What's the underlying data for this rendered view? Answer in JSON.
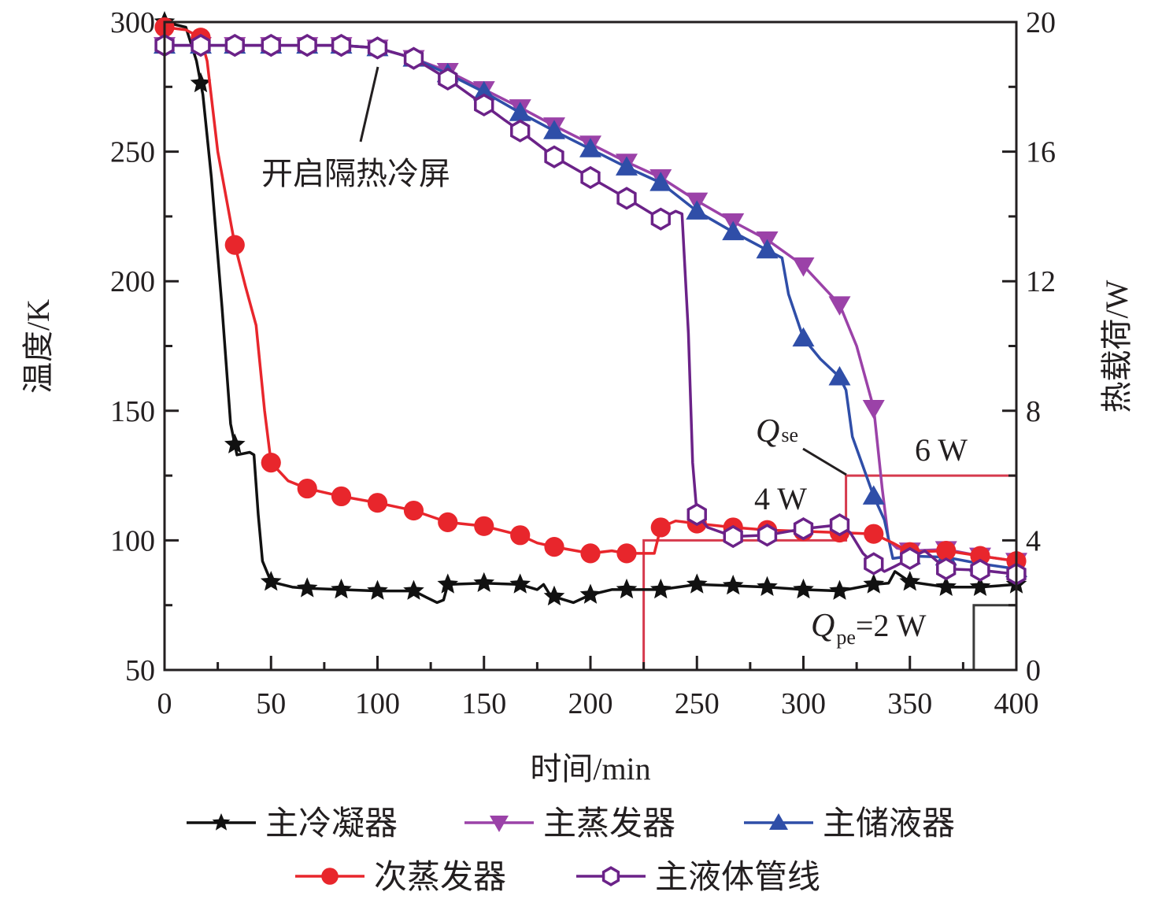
{
  "chart_data": {
    "type": "line",
    "xlabel": "时间/min",
    "ylabel": "温度/K",
    "ylabel_right": "热载荷/W",
    "xlim": [
      0,
      400
    ],
    "ylim": [
      50,
      300
    ],
    "ylim_right": [
      0,
      20
    ],
    "x_ticks": [
      "0",
      "50",
      "100",
      "150",
      "200",
      "250",
      "300",
      "350",
      "400"
    ],
    "y_ticks": [
      "300",
      "250",
      "200",
      "150",
      "100",
      "50"
    ],
    "y_ticks_right": [
      "20",
      "16",
      "12",
      "8",
      "4",
      "0"
    ],
    "grid": false,
    "legend_position": "bottom",
    "series": [
      {
        "name": "主冷凝器",
        "color": "#111111",
        "marker": "star",
        "points": [
          [
            0,
            300
          ],
          [
            10,
            298
          ],
          [
            15,
            285
          ],
          [
            18,
            272
          ],
          [
            22,
            240
          ],
          [
            27,
            190
          ],
          [
            31,
            145
          ],
          [
            34,
            133
          ],
          [
            40,
            134
          ],
          [
            42,
            133
          ],
          [
            44,
            110
          ],
          [
            46,
            92
          ],
          [
            50,
            84
          ],
          [
            60,
            82
          ],
          [
            67,
            81.5
          ],
          [
            83,
            81
          ],
          [
            100,
            80.5
          ],
          [
            117,
            80.5
          ],
          [
            123,
            78
          ],
          [
            128,
            76
          ],
          [
            131,
            77
          ],
          [
            133,
            83
          ],
          [
            150,
            83.5
          ],
          [
            167,
            83
          ],
          [
            175,
            81
          ],
          [
            178,
            83
          ],
          [
            181,
            79
          ],
          [
            184,
            78
          ],
          [
            192,
            76
          ],
          [
            200,
            79
          ],
          [
            210,
            81
          ],
          [
            217,
            81
          ],
          [
            233,
            81
          ],
          [
            250,
            83
          ],
          [
            267,
            82.5
          ],
          [
            283,
            82
          ],
          [
            300,
            81
          ],
          [
            317,
            80.5
          ],
          [
            333,
            83
          ],
          [
            340,
            83.5
          ],
          [
            343,
            88
          ],
          [
            350,
            84
          ],
          [
            367,
            82
          ],
          [
            383,
            82
          ],
          [
            400,
            83
          ]
        ],
        "marker_x": [
          0,
          17,
          33,
          50,
          67,
          83,
          100,
          117,
          133,
          150,
          167,
          183,
          200,
          217,
          233,
          250,
          267,
          283,
          300,
          317,
          333,
          350,
          367,
          383,
          400
        ]
      },
      {
        "name": "主蒸发器",
        "color": "#9b42a8",
        "marker": "triangle-down",
        "points": [
          [
            0,
            291
          ],
          [
            17,
            291
          ],
          [
            33,
            291
          ],
          [
            50,
            291
          ],
          [
            67,
            291
          ],
          [
            83,
            291
          ],
          [
            100,
            290
          ],
          [
            117,
            286
          ],
          [
            133,
            281
          ],
          [
            150,
            274
          ],
          [
            167,
            267
          ],
          [
            183,
            260
          ],
          [
            200,
            253
          ],
          [
            217,
            246
          ],
          [
            233,
            240
          ],
          [
            250,
            231
          ],
          [
            267,
            223
          ],
          [
            283,
            216
          ],
          [
            300,
            206
          ],
          [
            317,
            191
          ],
          [
            325,
            175
          ],
          [
            333,
            151
          ],
          [
            337,
            120
          ],
          [
            340,
            100
          ],
          [
            344,
            97
          ],
          [
            350,
            96
          ],
          [
            367,
            96.5
          ],
          [
            383,
            94
          ],
          [
            400,
            92
          ]
        ],
        "marker_x": [
          0,
          17,
          33,
          50,
          67,
          83,
          100,
          117,
          133,
          150,
          167,
          183,
          200,
          217,
          233,
          250,
          267,
          283,
          300,
          317,
          333,
          350,
          367,
          383,
          400
        ]
      },
      {
        "name": "主储液器",
        "color": "#2f4ea8",
        "marker": "triangle-up",
        "points": [
          [
            0,
            291
          ],
          [
            17,
            291
          ],
          [
            33,
            291
          ],
          [
            50,
            291
          ],
          [
            67,
            291
          ],
          [
            83,
            291
          ],
          [
            100,
            290
          ],
          [
            117,
            286
          ],
          [
            133,
            280
          ],
          [
            150,
            273
          ],
          [
            167,
            265
          ],
          [
            183,
            258
          ],
          [
            200,
            251
          ],
          [
            217,
            244
          ],
          [
            233,
            238
          ],
          [
            250,
            227
          ],
          [
            267,
            219
          ],
          [
            283,
            212
          ],
          [
            290,
            209
          ],
          [
            293,
            195
          ],
          [
            300,
            178
          ],
          [
            308,
            170
          ],
          [
            317,
            163
          ],
          [
            320,
            158
          ],
          [
            323,
            140
          ],
          [
            333,
            117
          ],
          [
            338,
            108
          ],
          [
            342,
            93
          ],
          [
            350,
            94
          ],
          [
            367,
            93.5
          ],
          [
            383,
            91
          ],
          [
            400,
            89
          ]
        ],
        "marker_x": [
          0,
          17,
          33,
          50,
          67,
          83,
          100,
          117,
          133,
          150,
          167,
          183,
          200,
          217,
          233,
          250,
          267,
          283,
          300,
          317,
          333,
          350,
          367,
          383,
          400
        ]
      },
      {
        "name": "次蒸发器",
        "color": "#e8262c",
        "marker": "circle",
        "points": [
          [
            0,
            298
          ],
          [
            10,
            297
          ],
          [
            17,
            294
          ],
          [
            20,
            285
          ],
          [
            25,
            250
          ],
          [
            33,
            214
          ],
          [
            38,
            198
          ],
          [
            43,
            183
          ],
          [
            47,
            150
          ],
          [
            50,
            130
          ],
          [
            58,
            123
          ],
          [
            67,
            120
          ],
          [
            83,
            117
          ],
          [
            100,
            114.5
          ],
          [
            117,
            111.5
          ],
          [
            133,
            107
          ],
          [
            150,
            105.5
          ],
          [
            167,
            102
          ],
          [
            175,
            99
          ],
          [
            183,
            97.5
          ],
          [
            200,
            95
          ],
          [
            210,
            96
          ],
          [
            217,
            95
          ],
          [
            225,
            95
          ],
          [
            230,
            95
          ],
          [
            233,
            105
          ],
          [
            240,
            107.5
          ],
          [
            250,
            106.5
          ],
          [
            267,
            105
          ],
          [
            283,
            104
          ],
          [
            300,
            103.5
          ],
          [
            317,
            103
          ],
          [
            333,
            102.5
          ],
          [
            342,
            99
          ],
          [
            350,
            95.5
          ],
          [
            367,
            96
          ],
          [
            383,
            94
          ],
          [
            400,
            92
          ]
        ],
        "marker_x": [
          0,
          17,
          33,
          50,
          67,
          83,
          100,
          117,
          133,
          150,
          167,
          183,
          200,
          217,
          233,
          250,
          267,
          283,
          300,
          317,
          333,
          350,
          367,
          383,
          400
        ]
      },
      {
        "name": "主液体管线",
        "color": "#6b2288",
        "marker": "hexagon-open",
        "points": [
          [
            0,
            291
          ],
          [
            17,
            291
          ],
          [
            33,
            291
          ],
          [
            50,
            291
          ],
          [
            67,
            291
          ],
          [
            83,
            291
          ],
          [
            100,
            290
          ],
          [
            117,
            286
          ],
          [
            133,
            278
          ],
          [
            150,
            268
          ],
          [
            160,
            262
          ],
          [
            167,
            258
          ],
          [
            183,
            248
          ],
          [
            200,
            240
          ],
          [
            217,
            232
          ],
          [
            233,
            224
          ],
          [
            240,
            227
          ],
          [
            243,
            226
          ],
          [
            246,
            180
          ],
          [
            248,
            130
          ],
          [
            250,
            110
          ],
          [
            255,
            105
          ],
          [
            267,
            101.5
          ],
          [
            283,
            102
          ],
          [
            300,
            104.5
          ],
          [
            317,
            106
          ],
          [
            322,
            103
          ],
          [
            328,
            95
          ],
          [
            333,
            91
          ],
          [
            338,
            88
          ],
          [
            343,
            90
          ],
          [
            350,
            93
          ],
          [
            357,
            96
          ],
          [
            367,
            89
          ],
          [
            383,
            88.5
          ],
          [
            400,
            87
          ]
        ],
        "marker_x": [
          0,
          17,
          33,
          50,
          67,
          83,
          100,
          117,
          133,
          150,
          167,
          183,
          200,
          217,
          233,
          250,
          267,
          283,
          300,
          317,
          333,
          350,
          367,
          383,
          400
        ]
      }
    ],
    "heat_loads": [
      {
        "name": "Q_se",
        "color": "#d63a4d",
        "axis": "right",
        "steps": [
          [
            0,
            0
          ],
          [
            225,
            0
          ],
          [
            225,
            4
          ],
          [
            320,
            4
          ],
          [
            320,
            6
          ],
          [
            400,
            6
          ]
        ]
      },
      {
        "name": "Q_pe",
        "color": "#3a3a3a",
        "axis": "right",
        "steps": [
          [
            225,
            0
          ],
          [
            380,
            0
          ],
          [
            380,
            2
          ],
          [
            400,
            2
          ]
        ]
      }
    ],
    "annotations": {
      "shield_on": "开启隔热冷屏",
      "qse_label": "Q",
      "qse_sub": "se",
      "w4": "4 W",
      "w6": "6 W",
      "qpe_label": "Q",
      "qpe_sub": "pe",
      "qpe_value": "=2 W"
    }
  }
}
